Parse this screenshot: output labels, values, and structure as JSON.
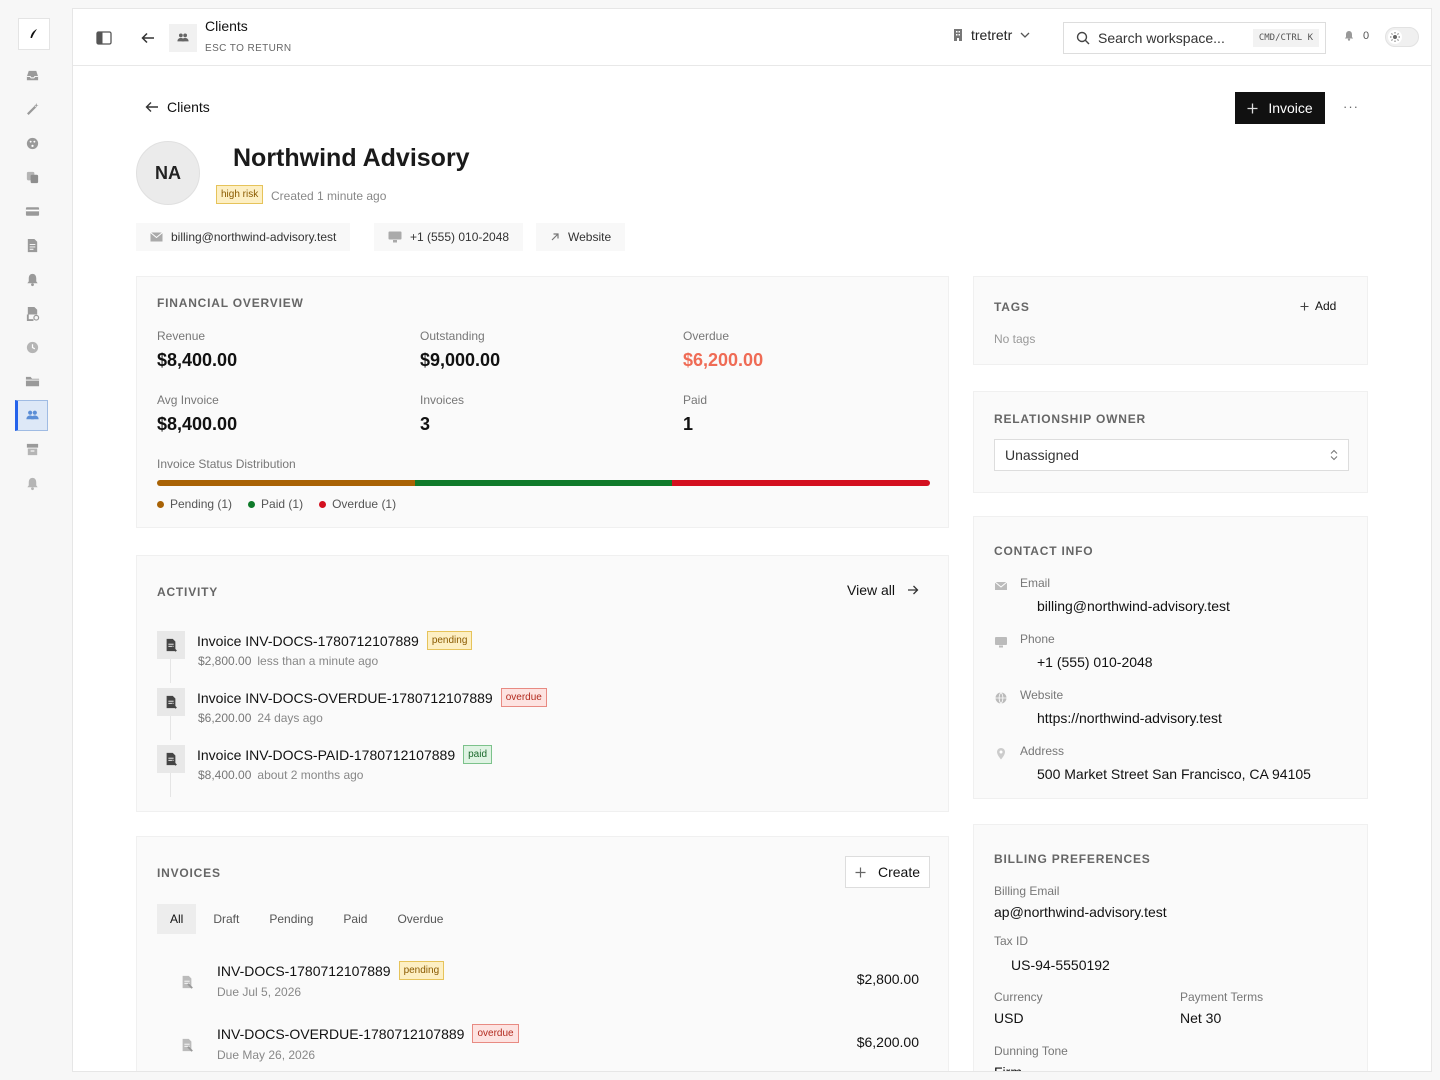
{
  "topbar": {
    "title": "Clients",
    "subtitle": "ESC TO RETURN",
    "workspace": "tretretr",
    "search_placeholder": "Search workspace...",
    "shortcut": "CMD/CTRL K",
    "notifications": "0"
  },
  "header": {
    "back_label": "Clients",
    "invoice_button": "Invoice",
    "more": "···",
    "initials": "NA",
    "client_name": "Northwind Advisory",
    "risk_badge": "high risk",
    "created": "Created 1 minute ago",
    "chips": {
      "email": "billing@northwind-advisory.test",
      "phone": "+1 (555) 010-2048",
      "website": "Website"
    }
  },
  "financial": {
    "title": "FINANCIAL OVERVIEW",
    "stats": [
      {
        "label": "Revenue",
        "value": "$8,400.00"
      },
      {
        "label": "Outstanding",
        "value": "$9,000.00"
      },
      {
        "label": "Overdue",
        "value": "$6,200.00"
      },
      {
        "label": "Avg Invoice",
        "value": "$8,400.00"
      },
      {
        "label": "Invoices",
        "value": "3"
      },
      {
        "label": "Paid",
        "value": "1"
      }
    ],
    "distribution_label": "Invoice Status Distribution",
    "distribution": [
      {
        "name": "Pending (1)",
        "count": 1,
        "color": "#a86205"
      },
      {
        "name": "Paid (1)",
        "count": 1,
        "color": "#0f7a2a"
      },
      {
        "name": "Overdue (1)",
        "count": 1,
        "color": "#d3101f"
      }
    ]
  },
  "activity": {
    "title": "ACTIVITY",
    "view_all": "View all",
    "items": [
      {
        "title": "Invoice INV-DOCS-1780712107889",
        "status": "pending",
        "amount": "$2,800.00",
        "time": "less than a minute ago"
      },
      {
        "title": "Invoice INV-DOCS-OVERDUE-1780712107889",
        "status": "overdue",
        "amount": "$6,200.00",
        "time": "24 days ago"
      },
      {
        "title": "Invoice INV-DOCS-PAID-1780712107889",
        "status": "paid",
        "amount": "$8,400.00",
        "time": "about 2 months ago"
      }
    ]
  },
  "invoices": {
    "title": "INVOICES",
    "create": "Create",
    "tabs": [
      "All",
      "Draft",
      "Pending",
      "Paid",
      "Overdue"
    ],
    "active_tab": "All",
    "rows": [
      {
        "number": "INV-DOCS-1780712107889",
        "status": "pending",
        "due": "Due Jul 5, 2026",
        "amount": "$2,800.00"
      },
      {
        "number": "INV-DOCS-OVERDUE-1780712107889",
        "status": "overdue",
        "due": "Due May 26, 2026",
        "amount": "$6,200.00"
      }
    ]
  },
  "tags": {
    "title": "TAGS",
    "add": "Add",
    "empty": "No tags"
  },
  "owner": {
    "title": "RELATIONSHIP OWNER",
    "value": "Unassigned"
  },
  "contact": {
    "title": "CONTACT INFO",
    "items": [
      {
        "label": "Email",
        "value": "billing@northwind-advisory.test",
        "icon": "mail-icon"
      },
      {
        "label": "Phone",
        "value": "+1 (555) 010-2048",
        "icon": "phone-icon"
      },
      {
        "label": "Website",
        "value": "https://northwind-advisory.test",
        "icon": "globe-icon"
      },
      {
        "label": "Address",
        "value": "500 Market Street San Francisco, CA 94105",
        "icon": "pin-icon"
      }
    ]
  },
  "billing": {
    "title": "BILLING PREFERENCES",
    "billing_email_label": "Billing Email",
    "billing_email": "ap@northwind-advisory.test",
    "tax_id_label": "Tax ID",
    "tax_id": "US-94-5550192",
    "currency_label": "Currency",
    "currency": "USD",
    "terms_label": "Payment Terms",
    "terms": "Net 30",
    "dunning_label": "Dunning Tone",
    "dunning": "Firm"
  },
  "rail": {
    "items": [
      "inbox-icon",
      "magic-icon",
      "palette-icon",
      "copy-icon",
      "card-icon",
      "invoice-icon",
      "bell-icon",
      "recurring-invoice-icon",
      "clock-icon",
      "folder-icon",
      "clients-icon",
      "archive-icon",
      "notification-icon"
    ],
    "active": "clients-icon"
  }
}
